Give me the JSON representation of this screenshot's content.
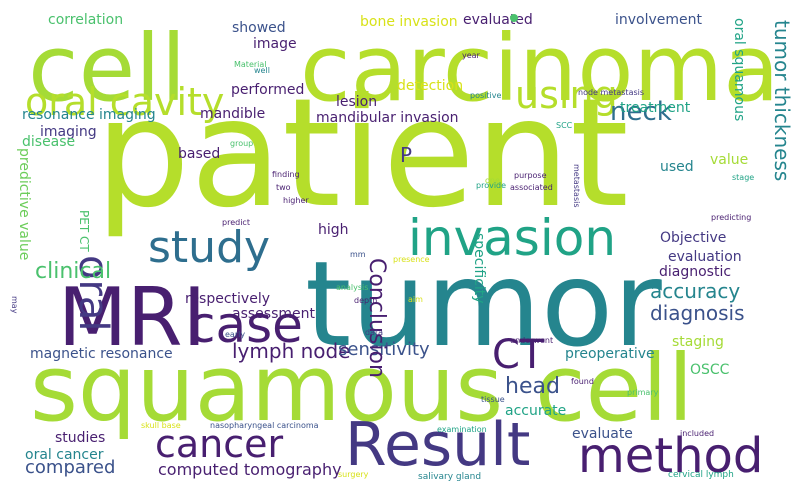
{
  "palette": {
    "light_green": "#b5de2b",
    "yellow_green": "#a5db36",
    "green": "#6ccd5a",
    "mid_green": "#4ac16d",
    "teal_green": "#35b779",
    "teal": "#20a386",
    "blue_teal": "#25858e",
    "steel_blue": "#2e6e8e",
    "blue": "#3b528b",
    "indigo": "#443983",
    "purple": "#481f70",
    "dark_purple": "#440154",
    "yellow": "#fde725",
    "gold": "#d8e219"
  },
  "words": [
    {
      "text": "patient",
      "color": "light_green"
    },
    {
      "text": "tumor",
      "color": "blue_teal"
    },
    {
      "text": "cell",
      "color": "yellow_green"
    },
    {
      "text": "carcinoma",
      "color": "light_green"
    },
    {
      "text": "squamous",
      "color": "yellow_green"
    },
    {
      "text": "cell",
      "color": "yellow_green"
    },
    {
      "text": "MRI",
      "color": "purple"
    },
    {
      "text": "case",
      "color": "purple"
    },
    {
      "text": "Result",
      "color": "indigo"
    },
    {
      "text": "method",
      "color": "purple"
    },
    {
      "text": "CT",
      "color": "purple"
    },
    {
      "text": "invasion",
      "color": "teal"
    },
    {
      "text": "study",
      "color": "steel_blue"
    },
    {
      "text": "oral cavity",
      "color": "light_green"
    },
    {
      "text": "using",
      "color": "light_green"
    },
    {
      "text": "cancer",
      "color": "purple"
    },
    {
      "text": "oral",
      "color": "indigo"
    },
    {
      "text": "neck",
      "color": "steel_blue"
    },
    {
      "text": "clinical",
      "color": "mid_green"
    },
    {
      "text": "head",
      "color": "blue"
    },
    {
      "text": "lymph node",
      "color": "purple"
    },
    {
      "text": "sensitivity",
      "color": "blue"
    },
    {
      "text": "accuracy",
      "color": "blue_teal"
    },
    {
      "text": "diagnosis",
      "color": "blue"
    },
    {
      "text": "tumor thickness",
      "color": "blue_teal"
    },
    {
      "text": "Conclusion",
      "color": "purple"
    },
    {
      "text": "P",
      "color": "indigo"
    },
    {
      "text": "compared",
      "color": "blue"
    },
    {
      "text": "oral cancer",
      "color": "blue_teal"
    },
    {
      "text": "computed tomography",
      "color": "purple"
    },
    {
      "text": "studies",
      "color": "purple"
    },
    {
      "text": "evaluate",
      "color": "blue"
    },
    {
      "text": "accurate",
      "color": "teal"
    },
    {
      "text": "staging",
      "color": "yellow_green"
    },
    {
      "text": "OSCC",
      "color": "mid_green"
    },
    {
      "text": "preoperative",
      "color": "blue_teal"
    },
    {
      "text": "magnetic resonance",
      "color": "blue"
    },
    {
      "text": "assessment",
      "color": "purple"
    },
    {
      "text": "respectively",
      "color": "purple"
    },
    {
      "text": "high",
      "color": "purple"
    },
    {
      "text": "evaluation",
      "color": "indigo"
    },
    {
      "text": "diagnostic",
      "color": "purple"
    },
    {
      "text": "Objective",
      "color": "indigo"
    },
    {
      "text": "specificity",
      "color": "teal"
    },
    {
      "text": "used",
      "color": "blue_teal"
    },
    {
      "text": "value",
      "color": "yellow_green"
    },
    {
      "text": "oral squamous",
      "color": "teal"
    },
    {
      "text": "treatment",
      "color": "teal"
    },
    {
      "text": "detection",
      "color": "gold"
    },
    {
      "text": "performed",
      "color": "purple"
    },
    {
      "text": "lesion",
      "color": "purple"
    },
    {
      "text": "mandibular invasion",
      "color": "purple"
    },
    {
      "text": "mandible",
      "color": "purple"
    },
    {
      "text": "resonance imaging",
      "color": "blue_teal"
    },
    {
      "text": "imaging",
      "color": "indigo"
    },
    {
      "text": "disease",
      "color": "mid_green"
    },
    {
      "text": "based",
      "color": "purple"
    },
    {
      "text": "predictive value",
      "color": "green"
    },
    {
      "text": "PET CT",
      "color": "mid_green"
    },
    {
      "text": "correlation",
      "color": "mid_green"
    },
    {
      "text": "showed",
      "color": "blue"
    },
    {
      "text": "image",
      "color": "purple"
    },
    {
      "text": "bone invasion",
      "color": "gold"
    },
    {
      "text": "evaluated",
      "color": "purple"
    },
    {
      "text": "involvement",
      "color": "blue"
    },
    {
      "text": "Material",
      "color": "mid_green"
    },
    {
      "text": "well",
      "color": "blue_teal"
    },
    {
      "text": "year",
      "color": "purple"
    },
    {
      "text": "positive",
      "color": "blue_teal"
    },
    {
      "text": "node metastasis",
      "color": "indigo"
    },
    {
      "text": "SCC",
      "color": "teal"
    },
    {
      "text": "metastasis",
      "color": "indigo"
    },
    {
      "text": "group",
      "color": "mid_green"
    },
    {
      "text": "finding",
      "color": "purple"
    },
    {
      "text": "two",
      "color": "purple"
    },
    {
      "text": "higher",
      "color": "purple"
    },
    {
      "text": "predict",
      "color": "purple"
    },
    {
      "text": "one",
      "color": "yellow_green"
    },
    {
      "text": "purpose",
      "color": "purple"
    },
    {
      "text": "associated",
      "color": "purple"
    },
    {
      "text": "provide",
      "color": "teal"
    },
    {
      "text": "stage",
      "color": "teal"
    },
    {
      "text": "predicting",
      "color": "purple"
    },
    {
      "text": "mm",
      "color": "blue"
    },
    {
      "text": "presence",
      "color": "gold"
    },
    {
      "text": "analysis",
      "color": "mid_green"
    },
    {
      "text": "depth",
      "color": "purple"
    },
    {
      "text": "aim",
      "color": "gold"
    },
    {
      "text": "may",
      "color": "indigo"
    },
    {
      "text": "early",
      "color": "blue"
    },
    {
      "text": "data",
      "color": "indigo"
    },
    {
      "text": "underwent",
      "color": "purple"
    },
    {
      "text": "found",
      "color": "purple"
    },
    {
      "text": "primary",
      "color": "mid_green"
    },
    {
      "text": "tissue",
      "color": "blue"
    },
    {
      "text": "examination",
      "color": "teal"
    },
    {
      "text": "skull base",
      "color": "gold"
    },
    {
      "text": "nasopharyngeal carcinoma",
      "color": "blue"
    },
    {
      "text": "included",
      "color": "purple"
    },
    {
      "text": "surgery",
      "color": "gold"
    },
    {
      "text": "salivary gland",
      "color": "blue_teal"
    },
    {
      "text": "cervical lymph",
      "color": "teal"
    }
  ]
}
